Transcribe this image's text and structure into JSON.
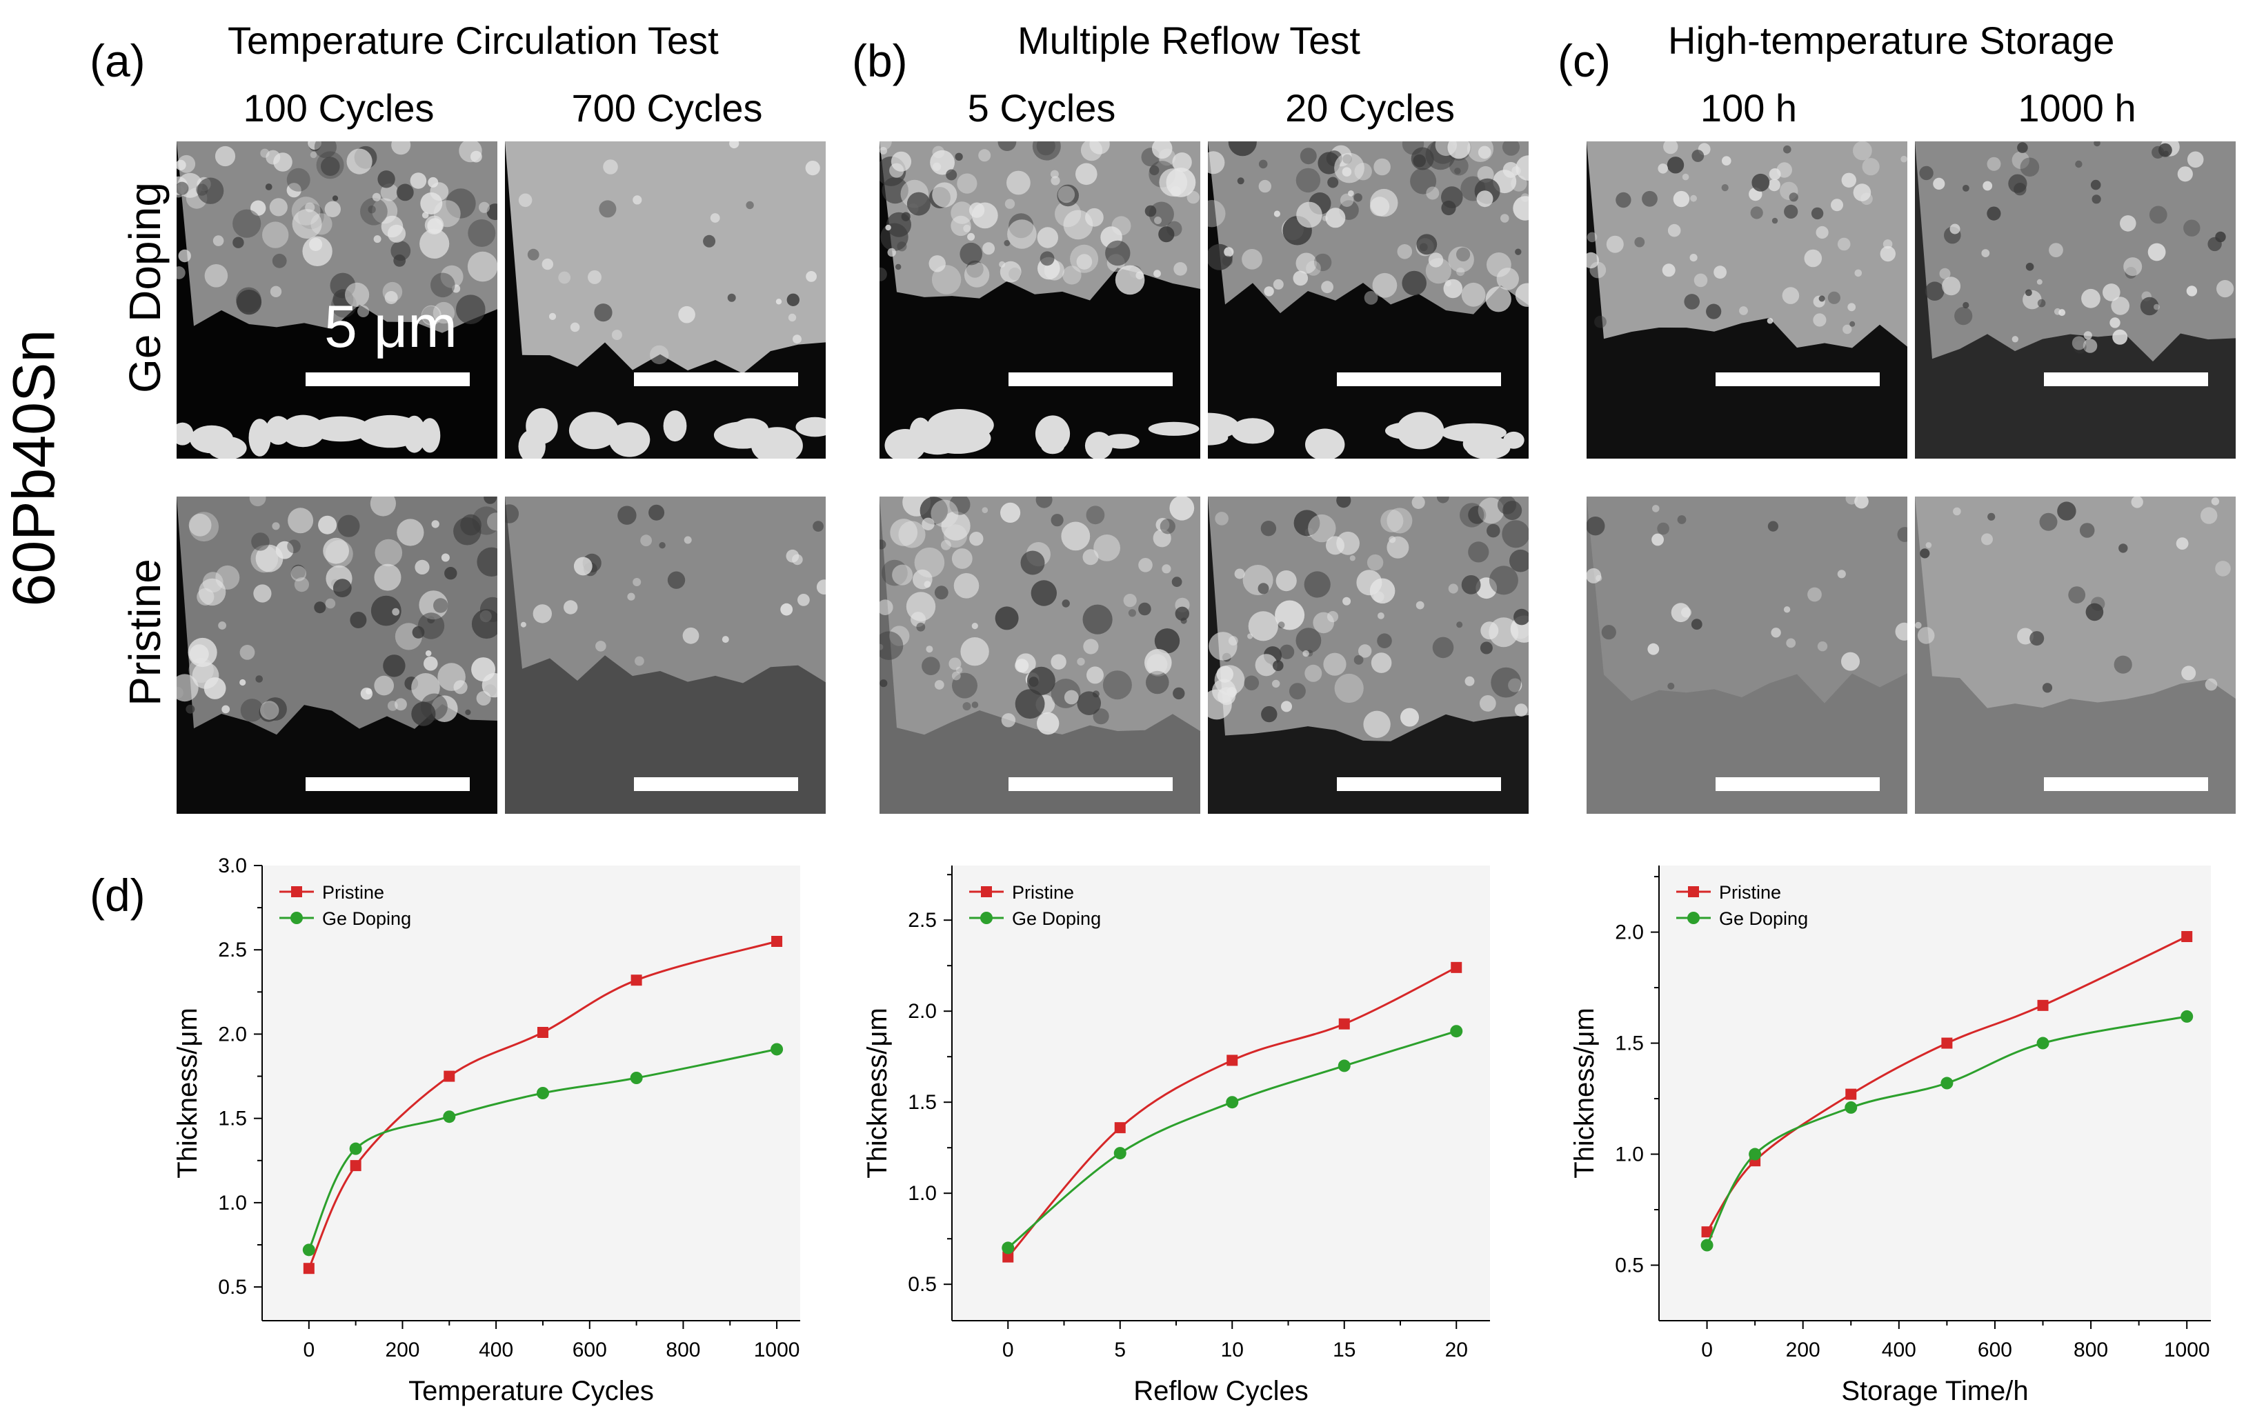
{
  "figure": {
    "sample_label": "60Pb40Sn",
    "row_labels": [
      "Ge Doping",
      "Pristine"
    ],
    "scale_text": "5 μm",
    "panels": [
      {
        "letter": "(a)",
        "title": "Temperature Circulation Test",
        "columns": [
          "100 Cycles",
          "700 Cycles"
        ]
      },
      {
        "letter": "(b)",
        "title": "Multiple Reflow Test",
        "columns": [
          "5 Cycles",
          "20 Cycles"
        ]
      },
      {
        "letter": "(c)",
        "title": "High-temperature Storage",
        "columns": [
          "100 h",
          "1000 h"
        ]
      }
    ],
    "d_letter": "(d)"
  },
  "chart_data": [
    {
      "type": "line",
      "xlabel": "Temperature Cycles",
      "ylabel": "Thickness/μm",
      "x": [
        0,
        100,
        300,
        500,
        700,
        1000
      ],
      "xlim": [
        -100,
        1050
      ],
      "ylim": [
        0.3,
        3.0
      ],
      "xticks": [
        0,
        200,
        400,
        600,
        800,
        1000
      ],
      "yticks": [
        0.5,
        1.0,
        1.5,
        2.0,
        2.5,
        3.0
      ],
      "ytick_labels": [
        "0.5",
        "1.0",
        "1.5",
        "2.0",
        "2.5",
        "3.0"
      ],
      "legend": "top-left",
      "series": [
        {
          "name": "Pristine",
          "color": "#d62728",
          "marker": "square",
          "values": [
            0.61,
            1.22,
            1.75,
            2.01,
            2.32,
            2.55
          ]
        },
        {
          "name": "Ge Doping",
          "color": "#2ca02c",
          "marker": "circle",
          "values": [
            0.72,
            1.32,
            1.51,
            1.65,
            1.74,
            1.91
          ]
        }
      ]
    },
    {
      "type": "line",
      "xlabel": "Reflow Cycles",
      "ylabel": "Thickness/μm",
      "x": [
        0,
        5,
        10,
        15,
        20
      ],
      "xlim": [
        -2.5,
        21.5
      ],
      "ylim": [
        0.3,
        2.8
      ],
      "xticks": [
        0,
        5,
        10,
        15,
        20
      ],
      "yticks": [
        0.5,
        1.0,
        1.5,
        2.0,
        2.5
      ],
      "ytick_labels": [
        "0.5",
        "1.0",
        "1.5",
        "2.0",
        "2.5"
      ],
      "legend": "top-left",
      "series": [
        {
          "name": "Pristine",
          "color": "#d62728",
          "marker": "square",
          "values": [
            0.65,
            1.36,
            1.73,
            1.93,
            2.24
          ]
        },
        {
          "name": "Ge Doping",
          "color": "#2ca02c",
          "marker": "circle",
          "values": [
            0.7,
            1.22,
            1.5,
            1.7,
            1.89
          ]
        }
      ]
    },
    {
      "type": "line",
      "xlabel": "Storage Time/h",
      "ylabel": "Thickness/μm",
      "x": [
        0,
        100,
        300,
        500,
        700,
        1000
      ],
      "xlim": [
        -100,
        1050
      ],
      "ylim": [
        0.25,
        2.3
      ],
      "xticks": [
        0,
        200,
        400,
        600,
        800,
        1000
      ],
      "yticks": [
        0.5,
        1.0,
        1.5,
        2.0
      ],
      "ytick_labels": [
        "0.5",
        "1.0",
        "1.5",
        "2.0"
      ],
      "legend": "top-left",
      "series": [
        {
          "name": "Pristine",
          "color": "#d62728",
          "marker": "square",
          "values": [
            0.65,
            0.97,
            1.27,
            1.5,
            1.67,
            1.98
          ]
        },
        {
          "name": "Ge Doping",
          "color": "#2ca02c",
          "marker": "circle",
          "values": [
            0.59,
            1.0,
            1.21,
            1.32,
            1.5,
            1.62
          ]
        }
      ]
    }
  ]
}
